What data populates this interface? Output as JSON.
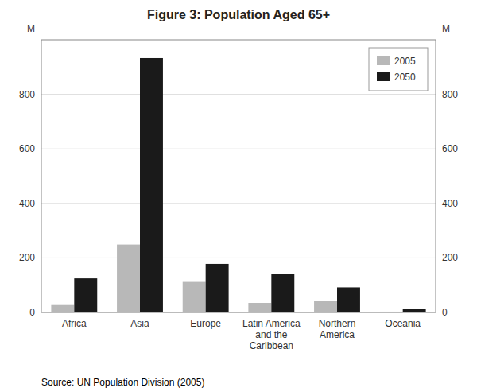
{
  "chart_data": {
    "type": "bar",
    "title": "Figure 3: Population Aged 65+",
    "categories": [
      "Africa",
      "Asia",
      "Europe",
      "Latin America\nand the\nCaribbean",
      "Northern\nAmerica",
      "Oceania"
    ],
    "series": [
      {
        "name": "2005",
        "color": "#b8b8b8",
        "values": [
          30,
          249,
          112,
          35,
          42,
          3
        ]
      },
      {
        "name": "2050",
        "color": "#1a1a1a",
        "values": [
          125,
          933,
          178,
          140,
          92,
          12
        ]
      }
    ],
    "ylim": [
      0,
      1000
    ],
    "yticks": [
      0,
      200,
      400,
      600,
      800
    ],
    "y2lim": [
      0,
      1000
    ],
    "y2ticks": [
      0,
      200,
      400,
      600,
      800
    ],
    "y_label": "M",
    "y2_label": "M",
    "source": "Source: UN Population Division (2005)",
    "grid": true,
    "legend": "upper right"
  }
}
